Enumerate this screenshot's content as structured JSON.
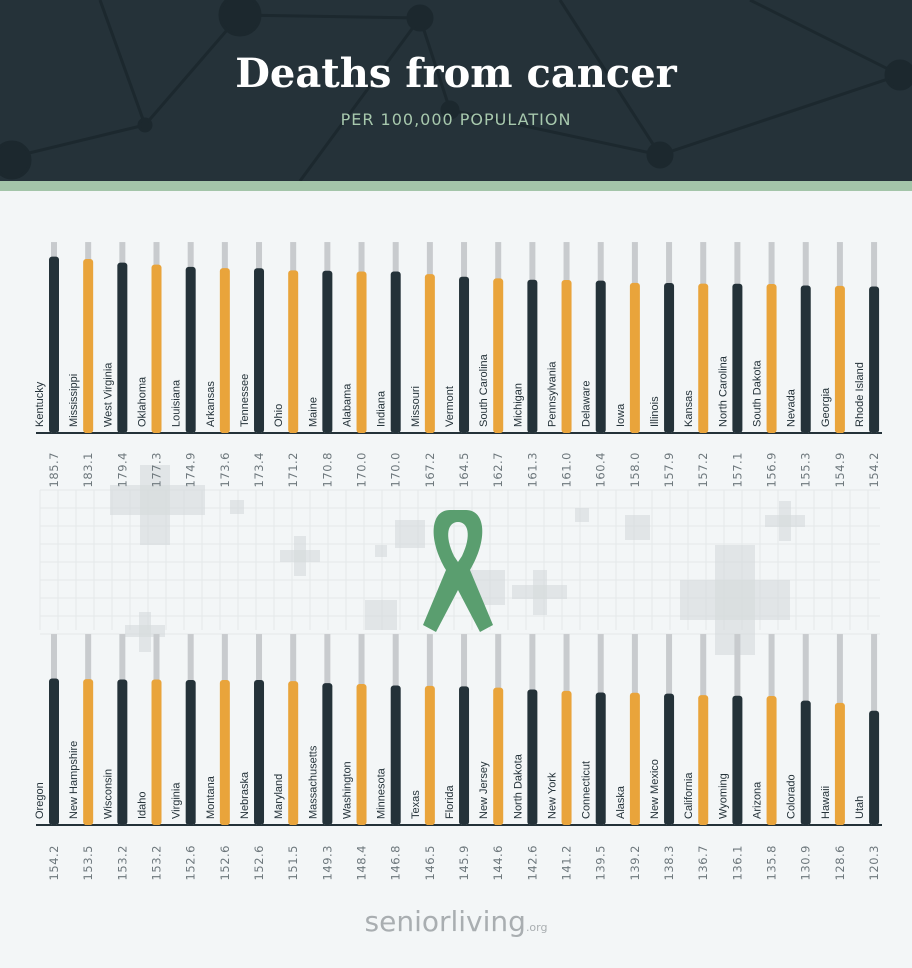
{
  "header": {
    "title": "Deaths from cancer",
    "subtitle": "PER 100,000 POPULATION"
  },
  "logo": {
    "text": "seniorliving",
    "suffix": ".org"
  },
  "colors": {
    "dark": "#243239",
    "accent": "#e9a43b",
    "track": "#c8cbce",
    "ribbon": "#5a9e6f"
  },
  "icon": "awareness-ribbon-icon",
  "chart_data": [
    {
      "type": "bar",
      "orientation": "vertical",
      "categories": [
        "Kentucky",
        "Mississippi",
        "West Virginia",
        "Oklahoma",
        "Louisiana",
        "Arkansas",
        "Tennessee",
        "Ohio",
        "Maine",
        "Alabama",
        "Indiana",
        "Missouri",
        "Vermont",
        "South Carolina",
        "Michigan",
        "Pennsylvania",
        "Delaware",
        "Iowa",
        "Illinois",
        "Kansas",
        "North Carolina",
        "South Dakota",
        "Nevada",
        "Georgia",
        "Rhode Island"
      ],
      "values": [
        185.7,
        183.1,
        179.4,
        177.3,
        174.9,
        173.6,
        173.4,
        171.2,
        170.8,
        170.0,
        170.0,
        167.2,
        164.5,
        162.7,
        161.3,
        161.0,
        160.4,
        158.0,
        157.9,
        157.2,
        157.1,
        156.9,
        155.3,
        154.9,
        154.2
      ],
      "labels": [
        "185.7",
        "183.1",
        "179.4",
        "177.3",
        "174.9",
        "173.6",
        "173.4",
        "171.2",
        "170.8",
        "170.0",
        "170.0",
        "167.2",
        "164.5",
        "162.7",
        "161.3",
        "161.0",
        "160.4",
        "158.0",
        "157.9",
        "157.2",
        "157.1",
        "156.9",
        "155.3",
        "154.9",
        "154.2"
      ],
      "bar_colors": "alternating dark/accent",
      "ylim": [
        0,
        200
      ]
    },
    {
      "type": "bar",
      "orientation": "vertical",
      "categories": [
        "Oregon",
        "New Hampshire",
        "Wisconsin",
        "Idaho",
        "Virginia",
        "Montana",
        "Nebraska",
        "Maryland",
        "Massachusetts",
        "Washington",
        "Minnesota",
        "Texas",
        "Florida",
        "New Jersey",
        "North Dakota",
        "New York",
        "Connecticut",
        "Alaska",
        "New Mexico",
        "California",
        "Wyoming",
        "Arizona",
        "Colorado",
        "Hawaii",
        "Utah"
      ],
      "values": [
        154.2,
        153.5,
        153.2,
        153.2,
        152.6,
        152.6,
        152.6,
        151.5,
        149.3,
        148.4,
        146.8,
        146.5,
        145.9,
        144.6,
        142.6,
        141.2,
        139.5,
        139.2,
        138.3,
        136.7,
        136.1,
        135.8,
        130.9,
        128.6,
        120.3
      ],
      "labels": [
        "154.2",
        "153.5",
        "153.2",
        "153.2",
        "152.6",
        "152.6",
        "152.6",
        "151.5",
        "149.3",
        "148.4",
        "146.8",
        "146.5",
        "145.9",
        "144.6",
        "142.6",
        "141.2",
        "139.5",
        "139.2",
        "138.3",
        "136.7",
        "136.1",
        "135.8",
        "130.9",
        "128.6",
        "120.3"
      ],
      "bar_colors": "alternating dark/accent",
      "ylim": [
        0,
        200
      ]
    }
  ]
}
